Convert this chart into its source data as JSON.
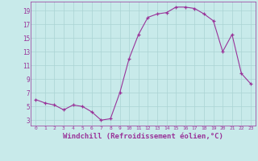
{
  "x": [
    0,
    1,
    2,
    3,
    4,
    5,
    6,
    7,
    8,
    9,
    10,
    11,
    12,
    13,
    14,
    15,
    16,
    17,
    18,
    19,
    20,
    21,
    22,
    23
  ],
  "y": [
    6.0,
    5.5,
    5.2,
    4.5,
    5.2,
    5.0,
    4.2,
    3.0,
    3.2,
    7.0,
    12.0,
    15.5,
    18.0,
    18.5,
    18.7,
    19.5,
    19.5,
    19.3,
    18.5,
    17.5,
    13.0,
    15.5,
    9.8,
    8.3
  ],
  "line_color": "#993399",
  "marker": "+",
  "background_color": "#c8eaea",
  "grid_color": "#aad4d4",
  "xlabel": "Windchill (Refroidissement éolien,°C)",
  "xlabel_fontsize": 6.5,
  "xtick_labels": [
    "0",
    "1",
    "2",
    "3",
    "4",
    "5",
    "6",
    "7",
    "8",
    "9",
    "10",
    "11",
    "12",
    "13",
    "14",
    "15",
    "16",
    "17",
    "18",
    "19",
    "20",
    "21",
    "22",
    "23"
  ],
  "ytick_labels": [
    "3",
    "5",
    "7",
    "9",
    "11",
    "13",
    "15",
    "17",
    "19"
  ],
  "ytick_values": [
    3,
    5,
    7,
    9,
    11,
    13,
    15,
    17,
    19
  ],
  "ylim": [
    2.2,
    20.3
  ],
  "xlim": [
    -0.5,
    23.5
  ]
}
